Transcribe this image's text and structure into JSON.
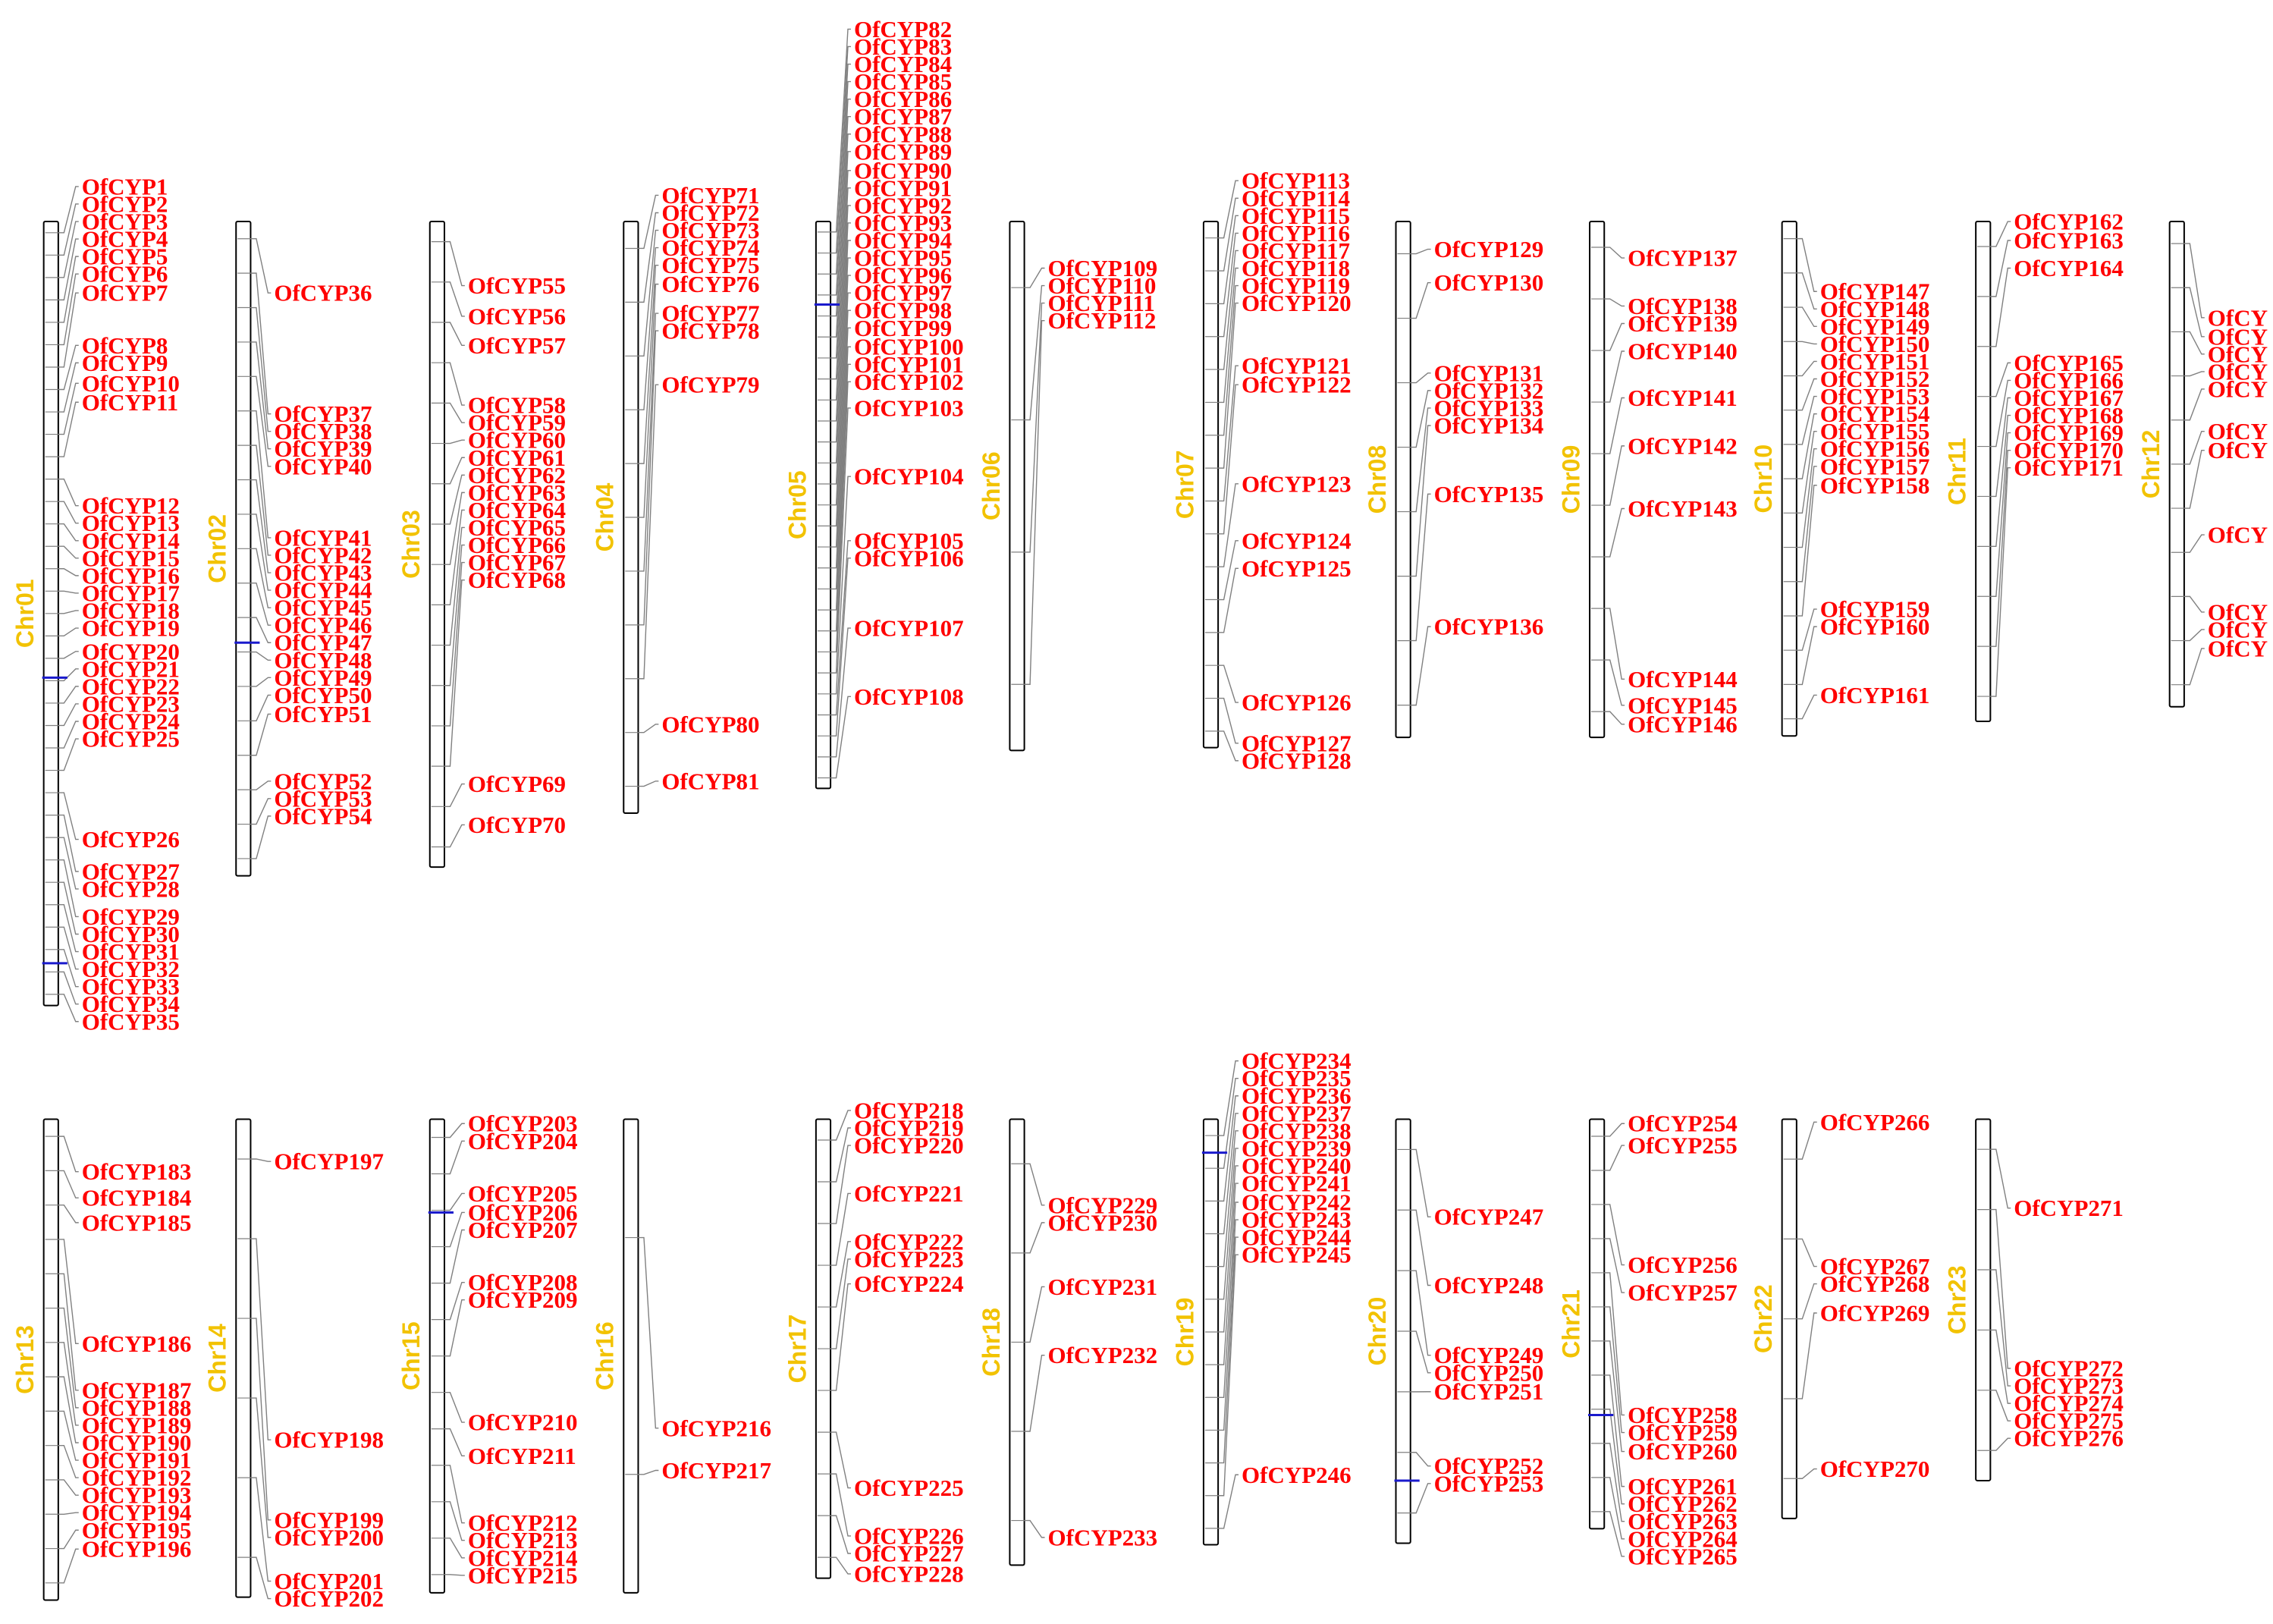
{
  "colors": {
    "chromosome_label": "#f2c200",
    "gene_label": "#ff0000",
    "chromosome_fill": "#ffffff",
    "chromosome_stroke": "#000000",
    "connector": "#808080",
    "duplication_line": "#1a1acc"
  },
  "chromosomes": [
    {
      "name": "Chr01",
      "genes": [
        "OfCYP1",
        "OfCYP2",
        "OfCYP3",
        "OfCYP4",
        "OfCYP5",
        "OfCYP6",
        "OfCYP7",
        "OfCYP8",
        "OfCYP9",
        "OfCYP10",
        "OfCYP11",
        "OfCYP12",
        "OfCYP13",
        "OfCYP14",
        "OfCYP15",
        "OfCYP16",
        "OfCYP17",
        "OfCYP18",
        "OfCYP19",
        "OfCYP20",
        "OfCYP21",
        "OfCYP22",
        "OfCYP23",
        "OfCYP24",
        "OfCYP25",
        "OfCYP26",
        "OfCYP27",
        "OfCYP28",
        "OfCYP29",
        "OfCYP30",
        "OfCYP31",
        "OfCYP32",
        "OfCYP33",
        "OfCYP34",
        "OfCYP35"
      ]
    },
    {
      "name": "Chr02",
      "genes": [
        "OfCYP36",
        "OfCYP37",
        "OfCYP38",
        "OfCYP39",
        "OfCYP40",
        "OfCYP41",
        "OfCYP42",
        "OfCYP43",
        "OfCYP44",
        "OfCYP45",
        "OfCYP46",
        "OfCYP47",
        "OfCYP48",
        "OfCYP49",
        "OfCYP50",
        "OfCYP51",
        "OfCYP52",
        "OfCYP53",
        "OfCYP54"
      ]
    },
    {
      "name": "Chr03",
      "genes": [
        "OfCYP55",
        "OfCYP56",
        "OfCYP57",
        "OfCYP58",
        "OfCYP59",
        "OfCYP60",
        "OfCYP61",
        "OfCYP62",
        "OfCYP63",
        "OfCYP64",
        "OfCYP65",
        "OfCYP66",
        "OfCYP67",
        "OfCYP68",
        "OfCYP69",
        "OfCYP70"
      ]
    },
    {
      "name": "Chr04",
      "genes": [
        "OfCYP71",
        "OfCYP72",
        "OfCYP73",
        "OfCYP74",
        "OfCYP75",
        "OfCYP76",
        "OfCYP77",
        "OfCYP78",
        "OfCYP79",
        "OfCYP80",
        "OfCYP81"
      ]
    },
    {
      "name": "Chr05",
      "genes": [
        "OfCYP82",
        "OfCYP83",
        "OfCYP84",
        "OfCYP85",
        "OfCYP86",
        "OfCYP87",
        "OfCYP88",
        "OfCYP89",
        "OfCYP90",
        "OfCYP91",
        "OfCYP92",
        "OfCYP93",
        "OfCYP94",
        "OfCYP95",
        "OfCYP96",
        "OfCYP97",
        "OfCYP98",
        "OfCYP99",
        "OfCYP100",
        "OfCYP101",
        "OfCYP102",
        "OfCYP103",
        "OfCYP104",
        "OfCYP105",
        "OfCYP106",
        "OfCYP107",
        "OfCYP108"
      ]
    },
    {
      "name": "Chr06",
      "genes": [
        "OfCYP109",
        "OfCYP110",
        "OfCYP111",
        "OfCYP112"
      ]
    },
    {
      "name": "Chr07",
      "genes": [
        "OfCYP113",
        "OfCYP114",
        "OfCYP115",
        "OfCYP116",
        "OfCYP117",
        "OfCYP118",
        "OfCYP119",
        "OfCYP120",
        "OfCYP121",
        "OfCYP122",
        "OfCYP123",
        "OfCYP124",
        "OfCYP125",
        "OfCYP126",
        "OfCYP127",
        "OfCYP128"
      ]
    },
    {
      "name": "Chr08",
      "genes": [
        "OfCYP129",
        "OfCYP130",
        "OfCYP131",
        "OfCYP132",
        "OfCYP133",
        "OfCYP134",
        "OfCYP135",
        "OfCYP136"
      ]
    },
    {
      "name": "Chr09",
      "genes": [
        "OfCYP137",
        "OfCYP138",
        "OfCYP139",
        "OfCYP140",
        "OfCYP141",
        "OfCYP142",
        "OfCYP143",
        "OfCYP144",
        "OfCYP145",
        "OfCYP146"
      ]
    },
    {
      "name": "Chr10",
      "genes": [
        "OfCYP147",
        "OfCYP148",
        "OfCYP149",
        "OfCYP150",
        "OfCYP151",
        "OfCYP152",
        "OfCYP153",
        "OfCYP154",
        "OfCYP155",
        "OfCYP156",
        "OfCYP157",
        "OfCYP158",
        "OfCYP159",
        "OfCYP160",
        "OfCYP161"
      ]
    },
    {
      "name": "Chr11",
      "genes": [
        "OfCYP162",
        "OfCYP163",
        "OfCYP164",
        "OfCYP165",
        "OfCYP166",
        "OfCYP167",
        "OfCYP168",
        "OfCYP169",
        "OfCYP170",
        "OfCYP171"
      ]
    },
    {
      "name": "Chr12",
      "genes": [
        "OfCY",
        "OfCY",
        "OfCY",
        "OfCY",
        "OfCY",
        "OfCY",
        "OfCY",
        "OfCY",
        "OfCY",
        "OfCY",
        "OfCY"
      ]
    },
    {
      "name": "Chr13",
      "genes": [
        "OfCYP183",
        "OfCYP184",
        "OfCYP185",
        "OfCYP186",
        "OfCYP187",
        "OfCYP188",
        "OfCYP189",
        "OfCYP190",
        "OfCYP191",
        "OfCYP192",
        "OfCYP193",
        "OfCYP194",
        "OfCYP195",
        "OfCYP196"
      ]
    },
    {
      "name": "Chr14",
      "genes": [
        "OfCYP197",
        "OfCYP198",
        "OfCYP199",
        "OfCYP200",
        "OfCYP201",
        "OfCYP202"
      ]
    },
    {
      "name": "Chr15",
      "genes": [
        "OfCYP203",
        "OfCYP204",
        "OfCYP205",
        "OfCYP206",
        "OfCYP207",
        "OfCYP208",
        "OfCYP209",
        "OfCYP210",
        "OfCYP211",
        "OfCYP212",
        "OfCYP213",
        "OfCYP214",
        "OfCYP215"
      ]
    },
    {
      "name": "Chr16",
      "genes": [
        "OfCYP216",
        "OfCYP217"
      ]
    },
    {
      "name": "Chr17",
      "genes": [
        "OfCYP218",
        "OfCYP219",
        "OfCYP220",
        "OfCYP221",
        "OfCYP222",
        "OfCYP223",
        "OfCYP224",
        "OfCYP225",
        "OfCYP226",
        "OfCYP227",
        "OfCYP228"
      ]
    },
    {
      "name": "Chr18",
      "genes": [
        "OfCYP229",
        "OfCYP230",
        "OfCYP231",
        "OfCYP232",
        "OfCYP233"
      ]
    },
    {
      "name": "Chr19",
      "genes": [
        "OfCYP234",
        "OfCYP235",
        "OfCYP236",
        "OfCYP237",
        "OfCYP238",
        "OfCYP239",
        "OfCYP240",
        "OfCYP241",
        "OfCYP242",
        "OfCYP243",
        "OfCYP244",
        "OfCYP245",
        "OfCYP246"
      ]
    },
    {
      "name": "Chr20",
      "genes": [
        "OfCYP247",
        "OfCYP248",
        "OfCYP249",
        "OfCYP250",
        "OfCYP251",
        "OfCYP252",
        "OfCYP253"
      ]
    },
    {
      "name": "Chr21",
      "genes": [
        "OfCYP254",
        "OfCYP255",
        "OfCYP256",
        "OfCYP257",
        "OfCYP258",
        "OfCYP259",
        "OfCYP260",
        "OfCYP261",
        "OfCYP262",
        "OfCYP263",
        "OfCYP264",
        "OfCYP265"
      ]
    },
    {
      "name": "Chr22",
      "genes": [
        "OfCYP266",
        "OfCYP267",
        "OfCYP268",
        "OfCYP269",
        "OfCYP270"
      ]
    },
    {
      "name": "Chr23",
      "genes": [
        "OfCYP271",
        "OfCYP272",
        "OfCYP273",
        "OfCYP274",
        "OfCYP275",
        "OfCYP276"
      ]
    }
  ]
}
